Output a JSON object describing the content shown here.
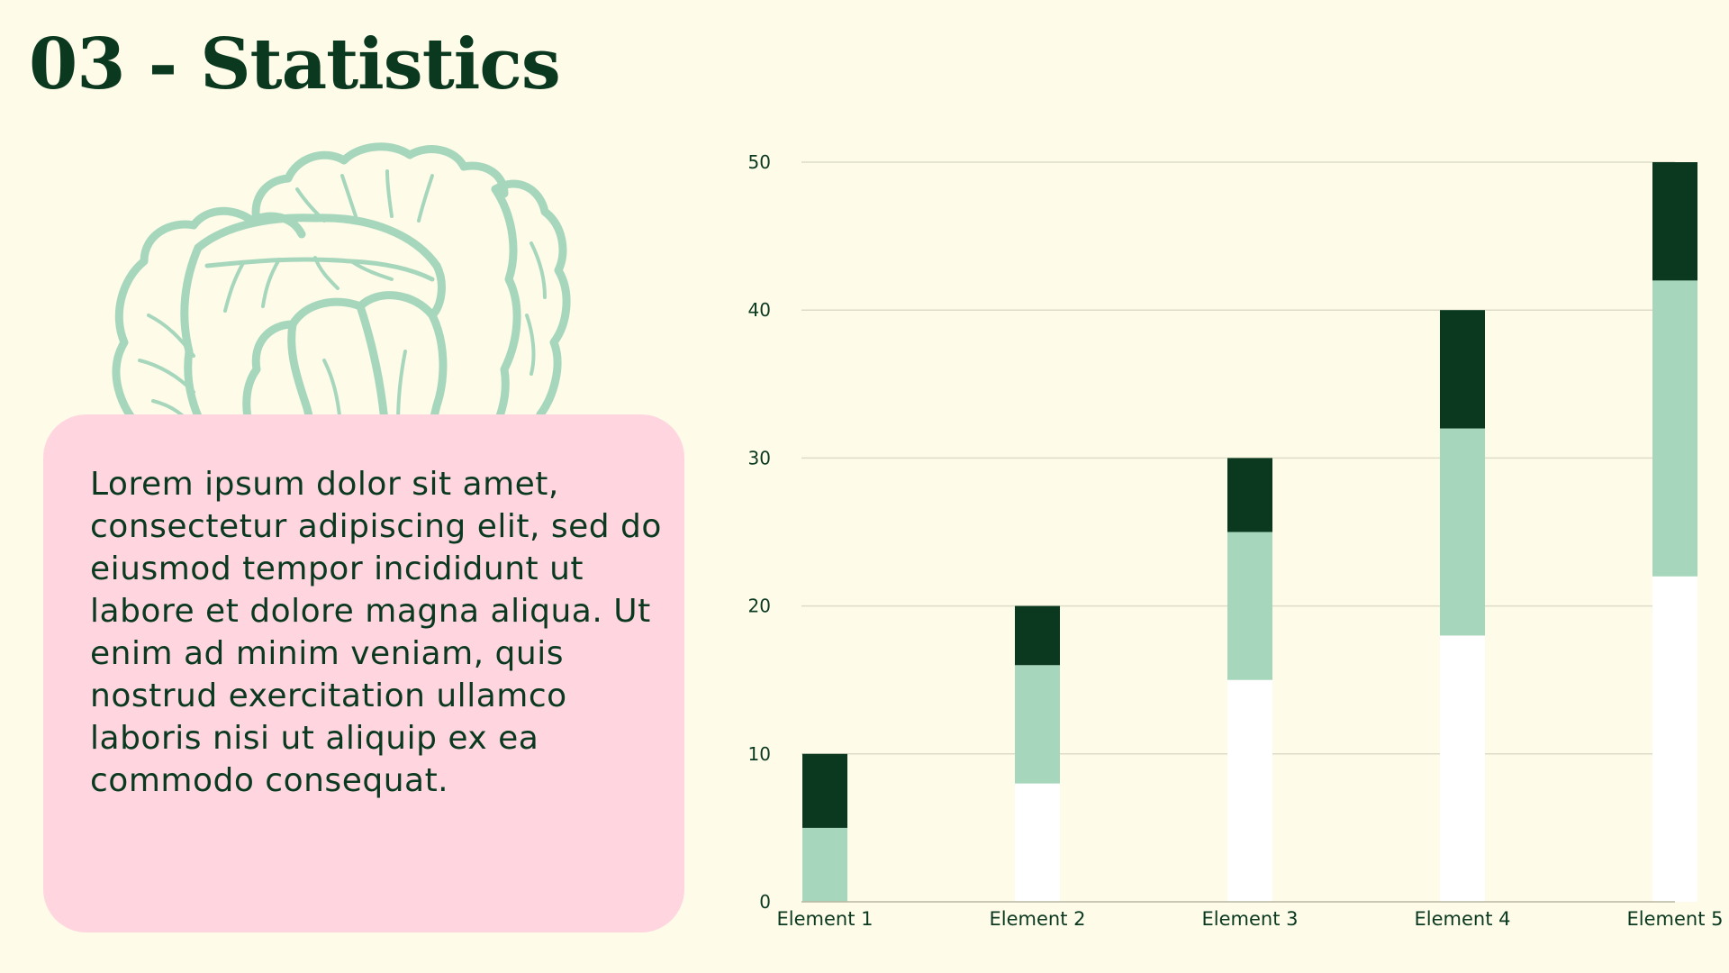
{
  "title": "03 - Statistics",
  "body_text": "Lorem ipsum dolor sit amet, consectetur adipiscing elit, sed do eiusmod tempor incididunt ut labore et dolore magna aliqua. Ut enim ad minim veniam, quis nostrud exercitation ullamco laboris nisi ut aliquip ex ea commodo consequat.",
  "illustration": {
    "icon": "cabbage-icon",
    "color": "#a6d7bc"
  },
  "colors": {
    "background": "#fefbe9",
    "text": "#0a3920",
    "textbox": "#ffd6df",
    "series_bottom": "#ffffff",
    "series_middle": "#a6d7bc",
    "series_top": "#0a3920"
  },
  "chart_data": {
    "type": "bar",
    "stacked": true,
    "categories": [
      "Element 1",
      "Element 2",
      "Element 3",
      "Element 4",
      "Element 5"
    ],
    "series": [
      {
        "values": [
          0,
          8,
          15,
          18,
          22
        ],
        "color": "#ffffff"
      },
      {
        "values": [
          5,
          8,
          10,
          14,
          20
        ],
        "color": "#a6d7bc"
      },
      {
        "values": [
          5,
          4,
          5,
          8,
          8
        ],
        "color": "#0a3920"
      }
    ],
    "ylim": [
      0,
      50
    ],
    "yticks": [
      0,
      10,
      20,
      30,
      40,
      50
    ],
    "grid": true,
    "legend": "none",
    "title": "",
    "xlabel": "",
    "ylabel": ""
  }
}
